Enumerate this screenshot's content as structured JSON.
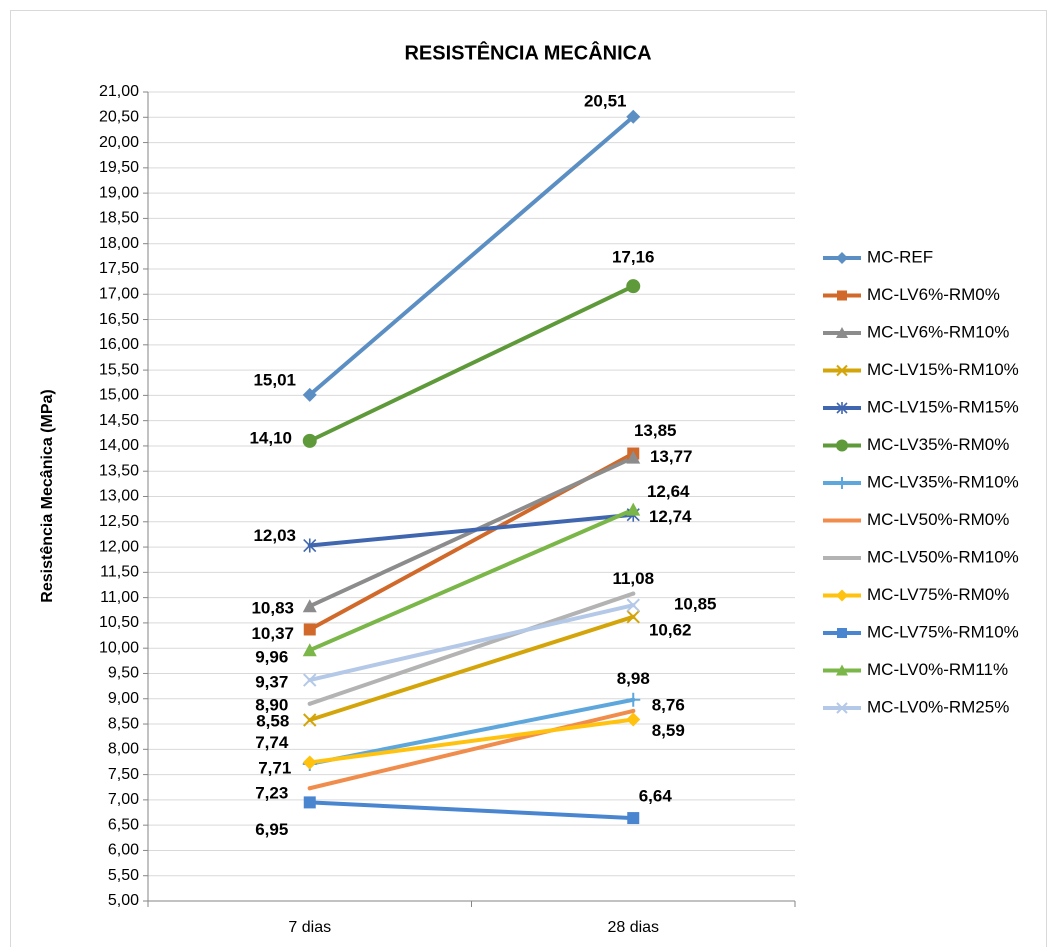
{
  "chart_data": {
    "type": "line",
    "title": "RESISTÊNCIA MECÂNICA",
    "y_label": "Resistência Mecânica (MPa)",
    "categories": [
      "7 dias",
      "28 dias"
    ],
    "ylim": [
      5,
      21
    ],
    "yticks": [
      {
        "value": 5,
        "label": "5,00"
      },
      {
        "value": 5.5,
        "label": "5,50"
      },
      {
        "value": 6,
        "label": "6,00"
      },
      {
        "value": 6.5,
        "label": "6,50"
      },
      {
        "value": 7,
        "label": "7,00"
      },
      {
        "value": 7.5,
        "label": "7,50"
      },
      {
        "value": 8,
        "label": "8,00"
      },
      {
        "value": 8.5,
        "label": "8,50"
      },
      {
        "value": 9,
        "label": "9,00"
      },
      {
        "value": 9.5,
        "label": "9,50"
      },
      {
        "value": 10,
        "label": "10,00"
      },
      {
        "value": 10.5,
        "label": "10,50"
      },
      {
        "value": 11,
        "label": "11,00"
      },
      {
        "value": 11.5,
        "label": "11,50"
      },
      {
        "value": 12,
        "label": "12,00"
      },
      {
        "value": 12.5,
        "label": "12,50"
      },
      {
        "value": 13,
        "label": "13,00"
      },
      {
        "value": 13.5,
        "label": "13,50"
      },
      {
        "value": 14,
        "label": "14,00"
      },
      {
        "value": 14.5,
        "label": "14,50"
      },
      {
        "value": 15,
        "label": "15,00"
      },
      {
        "value": 15.5,
        "label": "15,50"
      },
      {
        "value": 16,
        "label": "16,00"
      },
      {
        "value": 16.5,
        "label": "16,50"
      },
      {
        "value": 17,
        "label": "17,00"
      },
      {
        "value": 17.5,
        "label": "17,50"
      },
      {
        "value": 18,
        "label": "18,00"
      },
      {
        "value": 18.5,
        "label": "18,50"
      },
      {
        "value": 19,
        "label": "19,00"
      },
      {
        "value": 19.5,
        "label": "19,50"
      },
      {
        "value": 20,
        "label": "20,00"
      },
      {
        "value": 20.5,
        "label": "20,50"
      },
      {
        "value": 21,
        "label": "21,00"
      }
    ],
    "grid": true,
    "legend": "right",
    "series": [
      {
        "name": "MC-REF",
        "color": "#5b8fc4",
        "marker": "diamond",
        "values": [
          15.01,
          20.51
        ],
        "value_labels": [
          "15,01",
          "20,51"
        ]
      },
      {
        "name": "MC-LV6%-RM0%",
        "color": "#d0692a",
        "marker": "square",
        "values": [
          10.37,
          13.85
        ],
        "value_labels": [
          "10,37",
          "13,85"
        ]
      },
      {
        "name": "MC-LV6%-RM10%",
        "color": "#8c8c8c",
        "marker": "triangle",
        "values": [
          10.83,
          13.77
        ],
        "value_labels": [
          "10,83",
          "13,77"
        ]
      },
      {
        "name": "MC-LV15%-RM10%",
        "color": "#d4a50a",
        "marker": "x",
        "values": [
          8.58,
          10.62
        ],
        "value_labels": [
          "8,58",
          "10,62"
        ]
      },
      {
        "name": "MC-LV15%-RM15%",
        "color": "#3f66ae",
        "marker": "star",
        "values": [
          12.03,
          12.64
        ],
        "value_labels": [
          "12,03",
          "12,64"
        ]
      },
      {
        "name": "MC-LV35%-RM0%",
        "color": "#5f9a3a",
        "marker": "circle",
        "values": [
          14.1,
          17.16
        ],
        "value_labels": [
          "14,10",
          "17,16"
        ]
      },
      {
        "name": "MC-LV35%-RM10%",
        "color": "#5ea7dc",
        "marker": "plus",
        "values": [
          7.71,
          8.98
        ],
        "value_labels": [
          "7,71",
          "8,98"
        ]
      },
      {
        "name": "MC-LV50%-RM0%",
        "color": "#f08d4c",
        "marker": "none",
        "values": [
          7.23,
          8.76
        ],
        "value_labels": [
          "7,23",
          "8,76"
        ]
      },
      {
        "name": "MC-LV50%-RM10%",
        "color": "#b3b3b3",
        "marker": "none",
        "values": [
          8.9,
          11.08
        ],
        "value_labels": [
          "8,90",
          "11,08"
        ]
      },
      {
        "name": "MC-LV75%-RM0%",
        "color": "#ffc20e",
        "marker": "diamond",
        "values": [
          7.74,
          8.59
        ],
        "value_labels": [
          "7,74",
          "8,59"
        ]
      },
      {
        "name": "MC-LV75%-RM10%",
        "color": "#4a86d0",
        "marker": "square",
        "values": [
          6.95,
          6.64
        ],
        "value_labels": [
          "6,95",
          "6,64"
        ]
      },
      {
        "name": "MC-LV0%-RM11%",
        "color": "#7ab648",
        "marker": "triangle",
        "values": [
          9.96,
          12.74
        ],
        "value_labels": [
          "9,96",
          "12,74"
        ]
      },
      {
        "name": "MC-LV0%-RM25%",
        "color": "#b4c8e8",
        "marker": "x",
        "values": [
          9.37,
          10.85
        ],
        "value_labels": [
          "9,37",
          "10,85"
        ]
      }
    ]
  }
}
